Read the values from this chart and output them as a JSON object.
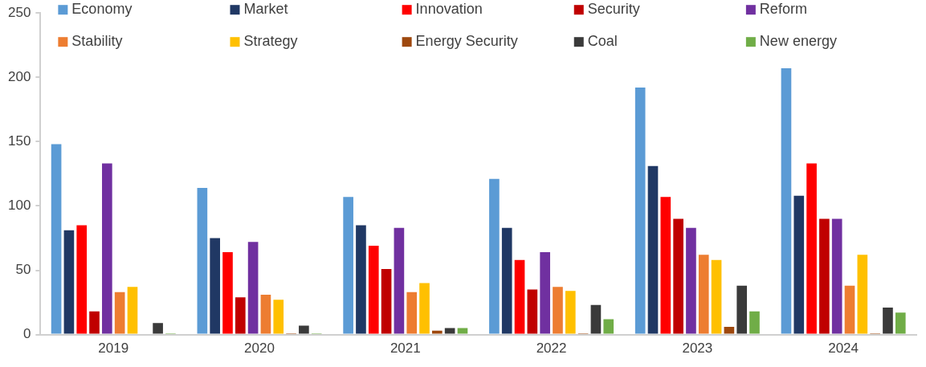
{
  "chart_data": {
    "type": "bar",
    "categories": [
      "2019",
      "2020",
      "2021",
      "2022",
      "2023",
      "2024"
    ],
    "series": [
      {
        "name": "Economy",
        "color": "#5b9bd5",
        "values": [
          148,
          114,
          107,
          121,
          192,
          207
        ]
      },
      {
        "name": "Market",
        "color": "#203864",
        "values": [
          81,
          75,
          85,
          83,
          131,
          108
        ]
      },
      {
        "name": "Innovation",
        "color": "#ff0000",
        "values": [
          85,
          64,
          69,
          58,
          107,
          133
        ]
      },
      {
        "name": "Security",
        "color": "#c00000",
        "values": [
          18,
          29,
          51,
          35,
          90,
          90
        ]
      },
      {
        "name": "Reform",
        "color": "#7030a0",
        "values": [
          133,
          72,
          83,
          64,
          83,
          90
        ]
      },
      {
        "name": "Stability",
        "color": "#ed7d31",
        "values": [
          33,
          31,
          33,
          37,
          62,
          38
        ]
      },
      {
        "name": "Strategy",
        "color": "#ffc000",
        "values": [
          37,
          27,
          40,
          34,
          58,
          62
        ]
      },
      {
        "name": "Energy Security",
        "color": "#9e480e",
        "values": [
          0,
          1,
          3,
          1,
          6,
          1
        ]
      },
      {
        "name": "Coal",
        "color": "#3a3a3a",
        "values": [
          9,
          7,
          5,
          23,
          38,
          21
        ]
      },
      {
        "name": "New energy",
        "color": "#70ad47",
        "values": [
          1,
          1,
          5,
          12,
          18,
          17
        ]
      }
    ],
    "ylim": [
      0,
      250
    ],
    "yticks": [
      0,
      50,
      100,
      150,
      200,
      250
    ],
    "grid": false,
    "legend": "top"
  }
}
